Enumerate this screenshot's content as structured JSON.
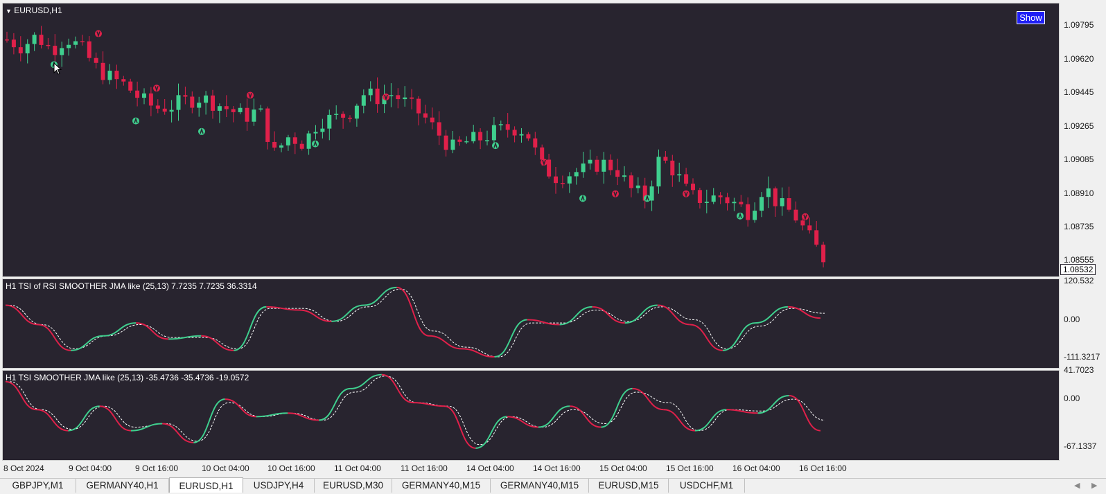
{
  "colors": {
    "background": "#28242f",
    "bull": "#3fcf8e",
    "bear": "#e0204a",
    "signal_line": "#ffffff",
    "show_button": "#1e1ef5"
  },
  "main_chart": {
    "title": "EURUSD,H1",
    "show_button_label": "Show",
    "price_axis": [
      "1.09795",
      "1.09620",
      "1.09445",
      "1.09265",
      "1.09085",
      "1.08910",
      "1.08735",
      "1.08555"
    ],
    "current_price": "1.08532"
  },
  "tsi_rsi_pane": {
    "title": "H1 TSI of RSI SMOOTHER JMA like (25,13) 7.7235 7.7235 36.3314",
    "axis": [
      "120.532",
      "0.00",
      "-111.3217"
    ]
  },
  "tsi_pane": {
    "title": "H1 TSI SMOOTHER JMA like (25,13) -35.4736 -35.4736 -19.0572",
    "axis": [
      "41.7023",
      "0.00",
      "-67.1337"
    ]
  },
  "time_axis": [
    "8 Oct 2024",
    "9 Oct 04:00",
    "9 Oct 16:00",
    "10 Oct 04:00",
    "10 Oct 16:00",
    "11 Oct 04:00",
    "11 Oct 16:00",
    "14 Oct 04:00",
    "14 Oct 16:00",
    "15 Oct 04:00",
    "15 Oct 16:00",
    "16 Oct 04:00",
    "16 Oct 16:00"
  ],
  "tabs": [
    {
      "label": "GBPJPY,M1",
      "active": false
    },
    {
      "label": "GERMANY40,H1",
      "active": false
    },
    {
      "label": "EURUSD,H1",
      "active": true
    },
    {
      "label": "USDJPY,H4",
      "active": false
    },
    {
      "label": "EURUSD,M30",
      "active": false
    },
    {
      "label": "GERMANY40,M15",
      "active": false
    },
    {
      "label": "GERMANY40,M15",
      "active": false
    },
    {
      "label": "EURUSD,M15",
      "active": false
    },
    {
      "label": "USDCHF,M1",
      "active": false
    }
  ],
  "chart_data": [
    {
      "type": "candlestick",
      "title": "EURUSD,H1",
      "symbol": "EURUSD",
      "timeframe": "H1",
      "ylim": [
        1.0851,
        1.0988
      ],
      "x_ticks": [
        "8 Oct 2024",
        "9 Oct 04:00",
        "9 Oct 16:00",
        "10 Oct 04:00",
        "10 Oct 16:00",
        "11 Oct 04:00",
        "11 Oct 16:00",
        "14 Oct 04:00",
        "14 Oct 16:00",
        "15 Oct 04:00",
        "15 Oct 16:00",
        "16 Oct 04:00",
        "16 Oct 16:00"
      ],
      "close_path": [
        1.0977,
        1.0973,
        1.0979,
        1.0971,
        1.0978,
        1.0972,
        1.0961,
        1.0955,
        1.0951,
        1.0943,
        1.0938,
        1.0939,
        1.0942,
        1.0944,
        1.0941,
        1.0937,
        1.0933,
        1.0937,
        1.0912,
        1.0922,
        1.0918,
        1.0931,
        1.0932,
        1.0935,
        1.0946,
        1.0944,
        1.0946,
        1.094,
        1.0934,
        1.0924,
        1.0915,
        1.0919,
        1.0921,
        1.0925,
        1.0927,
        1.0925,
        1.0905,
        1.0899,
        1.0901,
        1.0903,
        1.0907,
        1.0904,
        1.0892,
        1.0887,
        1.091,
        1.0902,
        1.0888,
        1.0886,
        1.0888,
        1.0884,
        1.0879,
        1.0894,
        1.0883,
        1.0878,
        1.0865,
        1.0853
      ],
      "buy_signals_near_price": [
        1.0969,
        1.0937,
        1.0931,
        1.0924,
        1.0923,
        1.0893,
        1.0893,
        1.0883,
        1.0869
      ],
      "sell_signals_near_price": [
        1.0974,
        1.0943,
        1.0939,
        1.0938,
        1.0901,
        1.0883,
        1.0883,
        1.087
      ]
    },
    {
      "type": "line",
      "title": "H1 TSI of RSI SMOOTHER JMA like (25,13) 7.7235 7.7235 36.3314",
      "ylim": [
        -111.3217,
        120.532
      ],
      "series": [
        {
          "values": [
            55,
            -5,
            -85,
            -40,
            0,
            -50,
            -40,
            -85,
            50,
            40,
            5,
            55,
            110,
            -40,
            -80,
            -105,
            10,
            -5,
            50,
            0,
            55,
            -5,
            -85,
            0,
            50,
            15
          ]
        },
        {
          "values": [
            55,
            -5,
            -80,
            -40,
            -5,
            -45,
            -45,
            -80,
            45,
            45,
            5,
            50,
            105,
            -25,
            -75,
            -105,
            0,
            0,
            40,
            5,
            50,
            10,
            -80,
            -10,
            45,
            30
          ]
        }
      ]
    },
    {
      "type": "line",
      "title": "H1 TSI SMOOTHER JMA like (25,13) -35.4736 -35.4736 -19.0572",
      "ylim": [
        -67.1337,
        41.7023
      ],
      "series": [
        {
          "values": [
            30,
            -10,
            -40,
            -5,
            -40,
            -30,
            -57,
            5,
            -20,
            -15,
            -25,
            20,
            40,
            0,
            -5,
            -65,
            -20,
            -35,
            -5,
            -35,
            20,
            -10,
            -40,
            -10,
            -15,
            10,
            -40
          ]
        },
        {
          "values": [
            30,
            -10,
            -38,
            -5,
            -35,
            -30,
            -55,
            0,
            -20,
            -15,
            -25,
            15,
            38,
            0,
            -5,
            -60,
            -20,
            -35,
            -10,
            -30,
            15,
            0,
            -40,
            -10,
            -12,
            5,
            -25
          ]
        }
      ]
    }
  ]
}
